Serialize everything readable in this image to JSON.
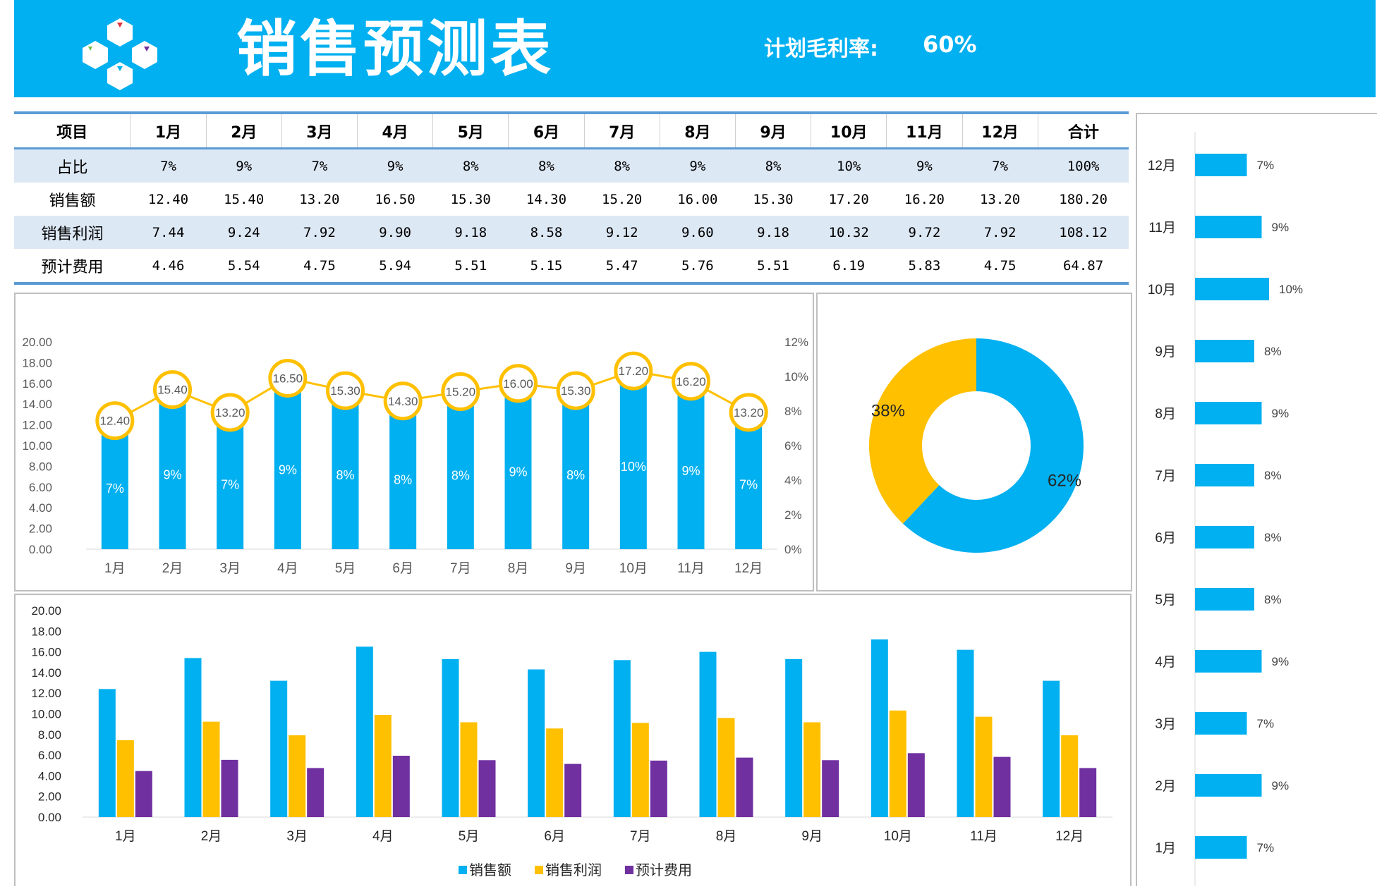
{
  "header": {
    "title": "销售预测表",
    "rate_label": "计划毛利率:",
    "rate_value": "60%"
  },
  "table": {
    "headers": [
      "项目",
      "1月",
      "2月",
      "3月",
      "4月",
      "5月",
      "6月",
      "7月",
      "8月",
      "9月",
      "10月",
      "11月",
      "12月",
      "合计"
    ],
    "rows": [
      {
        "label": "占比",
        "cells": [
          "7%",
          "9%",
          "7%",
          "9%",
          "8%",
          "8%",
          "8%",
          "9%",
          "8%",
          "10%",
          "9%",
          "7%",
          "100%"
        ]
      },
      {
        "label": "销售额",
        "cells": [
          "12.40",
          "15.40",
          "13.20",
          "16.50",
          "15.30",
          "14.30",
          "15.20",
          "16.00",
          "15.30",
          "17.20",
          "16.20",
          "13.20",
          "180.20"
        ]
      },
      {
        "label": "销售利润",
        "cells": [
          "7.44",
          "9.24",
          "7.92",
          "9.90",
          "9.18",
          "8.58",
          "9.12",
          "9.60",
          "9.18",
          "10.32",
          "9.72",
          "7.92",
          "108.12"
        ]
      },
      {
        "label": "预计费用",
        "cells": [
          "4.46",
          "5.54",
          "4.75",
          "5.94",
          "5.51",
          "5.15",
          "5.47",
          "5.76",
          "5.51",
          "6.19",
          "5.83",
          "4.75",
          "64.87"
        ]
      }
    ]
  },
  "colors": {
    "blue": "#00b0f0",
    "gold": "#ffc000",
    "purple": "#7030a0",
    "header": "#00b0f0"
  },
  "chart_data": [
    {
      "type": "bar",
      "categories": [
        "1月",
        "2月",
        "3月",
        "4月",
        "5月",
        "6月",
        "7月",
        "8月",
        "9月",
        "10月",
        "11月",
        "12月"
      ],
      "series": [
        {
          "values": [
            12.4,
            15.4,
            13.2,
            16.5,
            15.3,
            14.3,
            15.2,
            16.0,
            15.3,
            17.2,
            16.2,
            13.2
          ],
          "data_labels": [
            "7%",
            "9%",
            "7%",
            "9%",
            "8%",
            "8%",
            "8%",
            "9%",
            "8%",
            "10%",
            "9%",
            "7%"
          ]
        },
        {
          "type": "line",
          "values": [
            12.4,
            15.4,
            13.2,
            16.5,
            15.3,
            14.3,
            15.2,
            16.0,
            15.3,
            17.2,
            16.2,
            13.2
          ],
          "data_labels": [
            "12.40",
            "15.40",
            "13.20",
            "16.50",
            "15.30",
            "14.30",
            "15.20",
            "16.00",
            "15.30",
            "17.20",
            "16.20",
            "13.20"
          ]
        }
      ],
      "ylim": [
        0,
        20
      ],
      "y_ticks": [
        "0.00",
        "2.00",
        "4.00",
        "6.00",
        "8.00",
        "10.00",
        "12.00",
        "14.00",
        "16.00",
        "18.00",
        "20.00"
      ],
      "y2lim": [
        0,
        0.12
      ],
      "y2_ticks": [
        "0%",
        "2%",
        "4%",
        "6%",
        "8%",
        "10%",
        "12%"
      ]
    },
    {
      "type": "pie",
      "subtype": "donut",
      "slices": [
        {
          "value": 62,
          "label": "62%"
        },
        {
          "value": 38,
          "label": "38%"
        }
      ]
    },
    {
      "type": "bar",
      "categories": [
        "1月",
        "2月",
        "3月",
        "4月",
        "5月",
        "6月",
        "7月",
        "8月",
        "9月",
        "10月",
        "11月",
        "12月"
      ],
      "series": [
        {
          "name": "销售额",
          "values": [
            12.4,
            15.4,
            13.2,
            16.5,
            15.3,
            14.3,
            15.2,
            16.0,
            15.3,
            17.2,
            16.2,
            13.2
          ]
        },
        {
          "name": "销售利润",
          "values": [
            7.44,
            9.24,
            7.92,
            9.9,
            9.18,
            8.58,
            9.12,
            9.6,
            9.18,
            10.32,
            9.72,
            7.92
          ]
        },
        {
          "name": "预计费用",
          "values": [
            4.46,
            5.54,
            4.75,
            5.94,
            5.51,
            5.15,
            5.47,
            5.76,
            5.51,
            6.19,
            5.83,
            4.75
          ]
        }
      ],
      "ylim": [
        0,
        20
      ],
      "y_ticks": [
        "0.00",
        "2.00",
        "4.00",
        "6.00",
        "8.00",
        "10.00",
        "12.00",
        "14.00",
        "16.00",
        "18.00",
        "20.00"
      ],
      "legend": "bottom"
    },
    {
      "type": "bar",
      "orientation": "horizontal",
      "categories": [
        "12月",
        "11月",
        "10月",
        "9月",
        "8月",
        "7月",
        "6月",
        "5月",
        "4月",
        "3月",
        "2月",
        "1月"
      ],
      "values": [
        7,
        9,
        10,
        8,
        9,
        8,
        8,
        8,
        9,
        7,
        9,
        7
      ],
      "data_labels": [
        "7%",
        "9%",
        "10%",
        "8%",
        "9%",
        "8%",
        "8%",
        "8%",
        "9%",
        "7%",
        "9%",
        "7%"
      ]
    }
  ]
}
